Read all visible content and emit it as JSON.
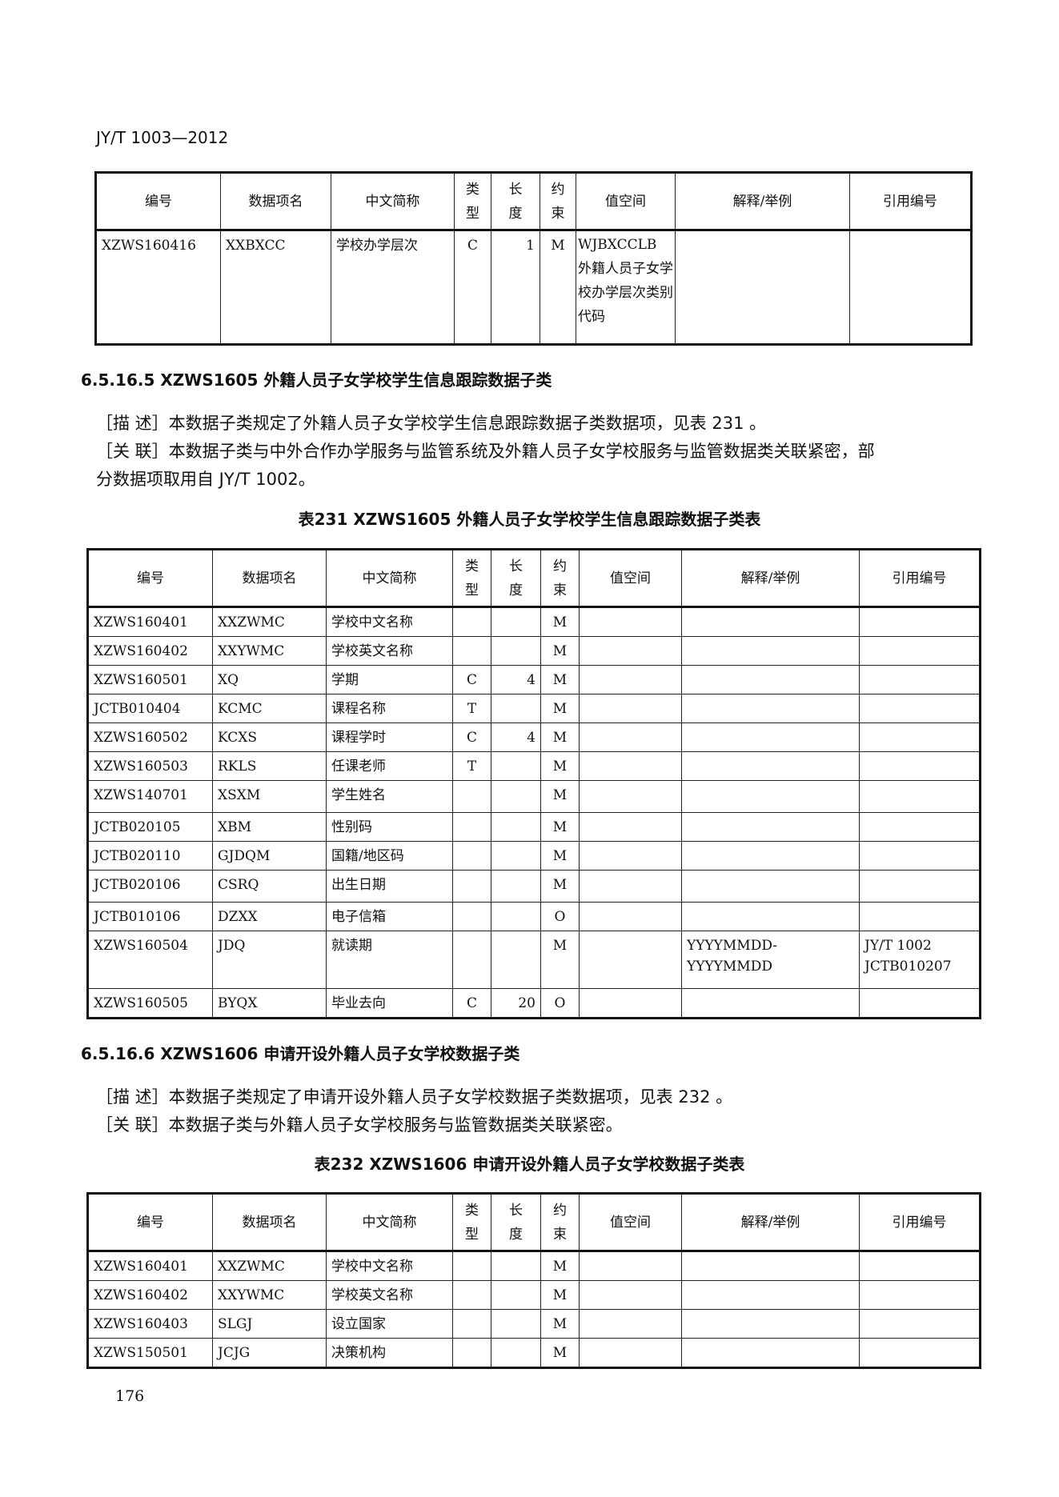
{
  "header": "JY/T 1003—2012",
  "columns": [
    "编号",
    "数据项名",
    "中文简称",
    "类型",
    "长度",
    "约束",
    "值空间",
    "解释/举例",
    "引用编号"
  ],
  "table_prev": {
    "rows": [
      [
        "XZWS160416",
        "XXBXCC",
        "学校办学层次",
        "C",
        "1",
        "M",
        "WJBXCCLB 外籍人员子女学校办学层次类别代码",
        "",
        ""
      ]
    ]
  },
  "section1": {
    "title": "6.5.16.5  XZWS1605 外籍人员子女学校学生信息跟踪数据子类",
    "desc": "［描 述］本数据子类规定了外籍人员子女学校学生信息跟踪数据子类数据项，见表 231  。",
    "rel1": "［关 联］本数据子类与中外合作办学服务与监管系统及外籍人员子女学校服务与监管数据类关联紧密，部",
    "rel2": "分数据项取用自 JY/T 1002。",
    "caption": "表231  XZWS1605 外籍人员子女学校学生信息跟踪数据子类表"
  },
  "table231": {
    "rows": [
      [
        "XZWS160401",
        "XXZWMC",
        "学校中文名称",
        "",
        "",
        "M",
        "",
        "",
        ""
      ],
      [
        "XZWS160402",
        "XXYWMC",
        "学校英文名称",
        "",
        "",
        "M",
        "",
        "",
        ""
      ],
      [
        "XZWS160501",
        "XQ",
        "学期",
        "C",
        "4",
        "M",
        "",
        "",
        ""
      ],
      [
        "JCTB010404",
        "KCMC",
        "课程名称",
        "T",
        "",
        "M",
        "",
        "",
        ""
      ],
      [
        "XZWS160502",
        "KCXS",
        "课程学时",
        "C",
        "4",
        "M",
        "",
        "",
        ""
      ],
      [
        "XZWS160503",
        "RKLS",
        "任课老师",
        "T",
        "",
        "M",
        "",
        "",
        ""
      ],
      [
        "XZWS140701",
        "XSXM",
        "学生姓名",
        "",
        "",
        "M",
        "",
        "",
        ""
      ],
      [
        "JCTB020105",
        "XBM",
        "性别码",
        "",
        "",
        "M",
        "",
        "",
        ""
      ],
      [
        "JCTB020110",
        "GJDQM",
        "国籍/地区码",
        "",
        "",
        "M",
        "",
        "",
        ""
      ],
      [
        "JCTB020106",
        "CSRQ",
        "出生日期",
        "",
        "",
        "M",
        "",
        "",
        ""
      ],
      [
        "JCTB010106",
        "DZXX",
        "电子信箱",
        "",
        "",
        "O",
        "",
        "",
        ""
      ],
      [
        "XZWS160504",
        "JDQ",
        "就读期",
        "",
        "",
        "M",
        "",
        "YYYYMMDD- YYYYMMDD",
        "JY/T 1002\nJCTB010207"
      ],
      [
        "XZWS160505",
        "BYQX",
        "毕业去向",
        "C",
        "20",
        "O",
        "",
        "",
        ""
      ]
    ]
  },
  "section2": {
    "title": "6.5.16.6  XZWS1606 申请开设外籍人员子女学校数据子类",
    "desc": "［描 述］本数据子类规定了申请开设外籍人员子女学校数据子类数据项，见表 232  。",
    "rel": "［关 联］本数据子类与外籍人员子女学校服务与监管数据类关联紧密。",
    "caption": "表232  XZWS1606 申请开设外籍人员子女学校数据子类表"
  },
  "table232": {
    "rows": [
      [
        "XZWS160401",
        "XXZWMC",
        "学校中文名称",
        "",
        "",
        "M",
        "",
        "",
        ""
      ],
      [
        "XZWS160402",
        "XXYWMC",
        "学校英文名称",
        "",
        "",
        "M",
        "",
        "",
        ""
      ],
      [
        "XZWS160403",
        "SLGJ",
        "设立国家",
        "",
        "",
        "M",
        "",
        "",
        ""
      ],
      [
        "XZWS150501",
        "JCJG",
        "决策机构",
        "",
        "",
        "M",
        "",
        "",
        ""
      ]
    ]
  },
  "page_number": "176"
}
